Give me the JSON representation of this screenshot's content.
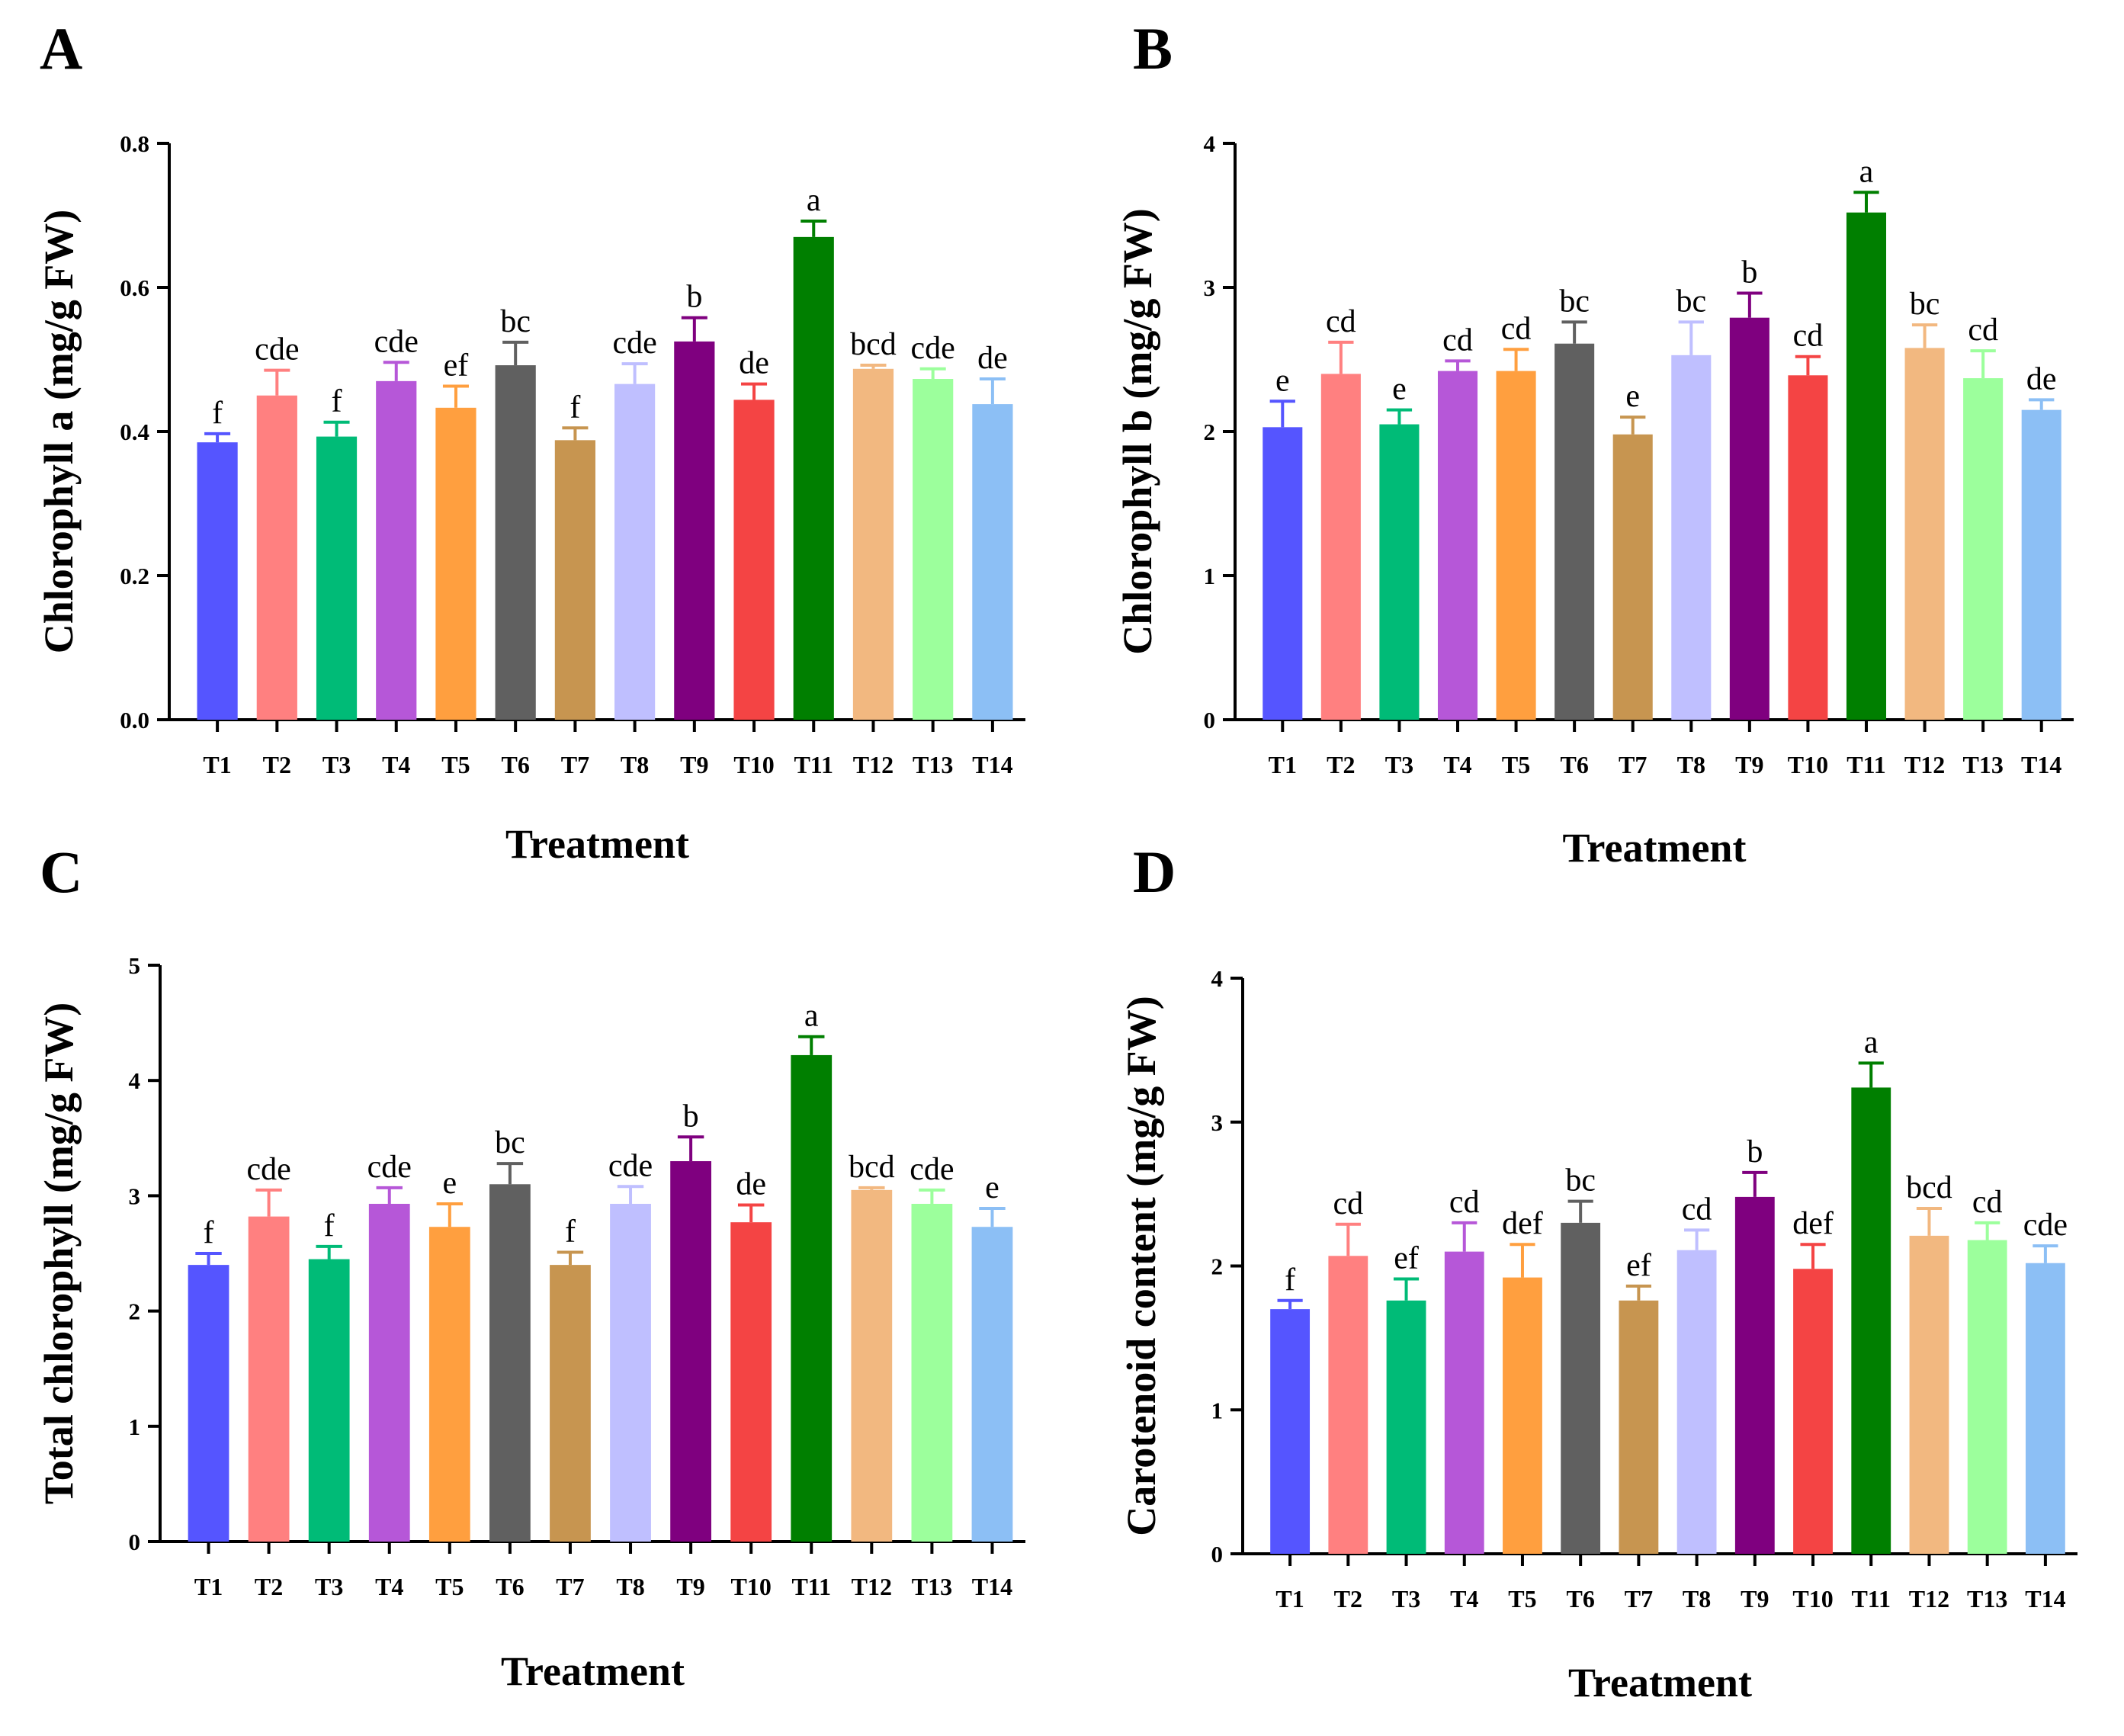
{
  "figure": {
    "panel_count": 4
  },
  "chart_data": [
    {
      "panel": "A",
      "type": "bar",
      "title": "",
      "xlabel": "Treatment",
      "ylabel": "Chlorophyll a (mg/g  FW)",
      "ylim": [
        0,
        0.8
      ],
      "yticks": [
        "0.0",
        "0.2",
        "0.4",
        "0.6",
        "0.8"
      ],
      "yticks_values": [
        0,
        0.2,
        0.4,
        0.6,
        0.8
      ],
      "categories": [
        "T1",
        "T2",
        "T3",
        "T4",
        "T5",
        "T6",
        "T7",
        "T8",
        "T9",
        "T10",
        "T11",
        "T12",
        "T13",
        "T14"
      ],
      "values": [
        0.385,
        0.45,
        0.393,
        0.47,
        0.433,
        0.492,
        0.388,
        0.466,
        0.525,
        0.444,
        0.67,
        0.487,
        0.473,
        0.438
      ],
      "errors": [
        0.012,
        0.035,
        0.02,
        0.026,
        0.03,
        0.032,
        0.017,
        0.028,
        0.033,
        0.022,
        0.022,
        0.005,
        0.014,
        0.035
      ],
      "letters": [
        "f",
        "cde",
        "f",
        "cde",
        "ef",
        "bc",
        "f",
        "cde",
        "b",
        "de",
        "a",
        "bcd",
        "cde",
        "de"
      ],
      "colors": [
        "#5555ff",
        "#ff8080",
        "#00bb77",
        "#b657d8",
        "#ff9f3f",
        "#606060",
        "#c79550",
        "#bfbfff",
        "#7f007f",
        "#f44444",
        "#007f00",
        "#f2b880",
        "#9cff9c",
        "#8cbff5"
      ]
    },
    {
      "panel": "B",
      "type": "bar",
      "title": "",
      "xlabel": "Treatment",
      "ylabel": "Chlorophyll b (mg/g  FW)",
      "ylim": [
        0,
        4
      ],
      "yticks": [
        "0",
        "1",
        "2",
        "3",
        "4"
      ],
      "yticks_values": [
        0,
        1,
        2,
        3,
        4
      ],
      "categories": [
        "T1",
        "T2",
        "T3",
        "T4",
        "T5",
        "T6",
        "T7",
        "T8",
        "T9",
        "T10",
        "T11",
        "T12",
        "T13",
        "T14"
      ],
      "values": [
        2.03,
        2.4,
        2.05,
        2.42,
        2.42,
        2.61,
        1.98,
        2.53,
        2.79,
        2.39,
        3.52,
        2.58,
        2.37,
        2.15
      ],
      "errors": [
        0.18,
        0.22,
        0.1,
        0.07,
        0.15,
        0.15,
        0.12,
        0.23,
        0.17,
        0.13,
        0.14,
        0.16,
        0.19,
        0.07
      ],
      "letters": [
        "e",
        "cd",
        "e",
        "cd",
        "cd",
        "bc",
        "e",
        "bc",
        "b",
        "cd",
        "a",
        "bc",
        "cd",
        "de"
      ],
      "colors": [
        "#5555ff",
        "#ff8080",
        "#00bb77",
        "#b657d8",
        "#ff9f3f",
        "#606060",
        "#c79550",
        "#bfbfff",
        "#7f007f",
        "#f44444",
        "#007f00",
        "#f2b880",
        "#9cff9c",
        "#8cbff5"
      ]
    },
    {
      "panel": "C",
      "type": "bar",
      "title": "",
      "xlabel": "Treatment",
      "ylabel": "Total chlorophyll (mg/g  FW)",
      "ylim": [
        0,
        5
      ],
      "yticks": [
        "0",
        "1",
        "2",
        "3",
        "4",
        "5"
      ],
      "yticks_values": [
        0,
        1,
        2,
        3,
        4,
        5
      ],
      "categories": [
        "T1",
        "T2",
        "T3",
        "T4",
        "T5",
        "T6",
        "T7",
        "T8",
        "T9",
        "T10",
        "T11",
        "T12",
        "T13",
        "T14"
      ],
      "values": [
        2.4,
        2.82,
        2.45,
        2.93,
        2.73,
        3.1,
        2.4,
        2.93,
        3.3,
        2.77,
        4.22,
        3.05,
        2.93,
        2.73
      ],
      "errors": [
        0.1,
        0.23,
        0.11,
        0.14,
        0.2,
        0.18,
        0.11,
        0.15,
        0.21,
        0.15,
        0.16,
        0.02,
        0.12,
        0.16
      ],
      "letters": [
        "f",
        "cde",
        "f",
        "cde",
        "e",
        "bc",
        "f",
        "cde",
        "b",
        "de",
        "a",
        "bcd",
        "cde",
        "e"
      ],
      "colors": [
        "#5555ff",
        "#ff8080",
        "#00bb77",
        "#b657d8",
        "#ff9f3f",
        "#606060",
        "#c79550",
        "#bfbfff",
        "#7f007f",
        "#f44444",
        "#007f00",
        "#f2b880",
        "#9cff9c",
        "#8cbff5"
      ]
    },
    {
      "panel": "D",
      "type": "bar",
      "title": "",
      "xlabel": "Treatment",
      "ylabel": "Carotenoid content (mg/g  FW)",
      "ylim": [
        0,
        4
      ],
      "yticks": [
        "0",
        "1",
        "2",
        "3",
        "4"
      ],
      "yticks_values": [
        0,
        1,
        2,
        3,
        4
      ],
      "categories": [
        "T1",
        "T2",
        "T3",
        "T4",
        "T5",
        "T6",
        "T7",
        "T8",
        "T9",
        "T10",
        "T11",
        "T12",
        "T13",
        "T14"
      ],
      "values": [
        1.7,
        2.07,
        1.76,
        2.1,
        1.92,
        2.3,
        1.76,
        2.11,
        2.48,
        1.98,
        3.24,
        2.21,
        2.18,
        2.02
      ],
      "errors": [
        0.06,
        0.22,
        0.15,
        0.2,
        0.23,
        0.15,
        0.1,
        0.14,
        0.17,
        0.17,
        0.17,
        0.19,
        0.12,
        0.12
      ],
      "letters": [
        "f",
        "cd",
        "ef",
        "cd",
        "def",
        "bc",
        "ef",
        "cd",
        "b",
        "def",
        "a",
        "bcd",
        "cd",
        "cde"
      ],
      "colors": [
        "#5555ff",
        "#ff8080",
        "#00bb77",
        "#b657d8",
        "#ff9f3f",
        "#606060",
        "#c79550",
        "#bfbfff",
        "#7f007f",
        "#f44444",
        "#007f00",
        "#f2b880",
        "#9cff9c",
        "#8cbff5"
      ]
    }
  ]
}
